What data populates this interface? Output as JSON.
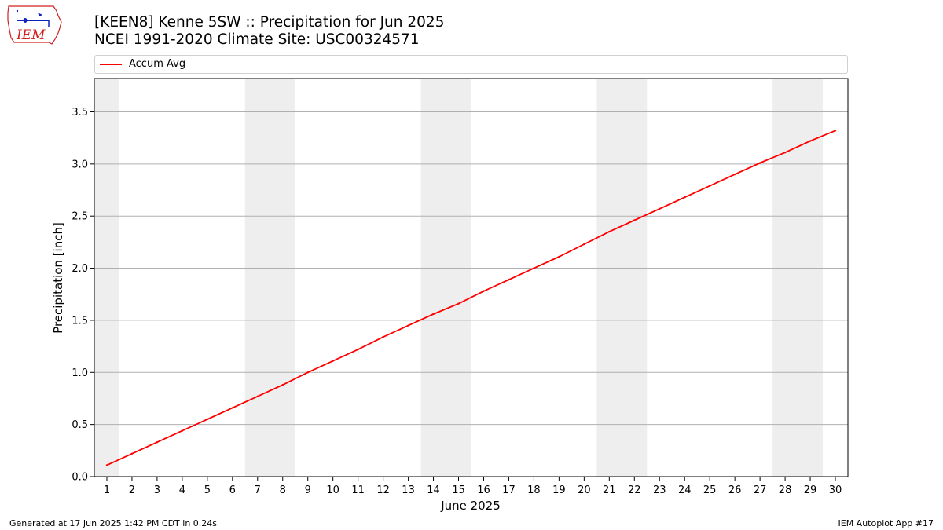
{
  "header": {
    "title_line1": "[KEEN8] Kenne 5SW :: Precipitation for Jun 2025",
    "title_line2": "NCEI 1991-2020 Climate Site: USC00324571"
  },
  "logo": {
    "text": "IEM",
    "icon": "iem-iowa-logo-icon"
  },
  "footer": {
    "left": "Generated at 17 Jun 2025 1:42 PM CDT in 0.24s",
    "right": "IEM Autoplot App #17"
  },
  "colors": {
    "accum_avg": "#ff0000",
    "weekend_band": "#eeeeee",
    "grid": "#b0b0b0"
  },
  "chart_data": {
    "type": "line",
    "xlabel": "June 2025",
    "ylabel": "Precipitation [inch]",
    "x": [
      1,
      2,
      3,
      4,
      5,
      6,
      7,
      8,
      9,
      10,
      11,
      12,
      13,
      14,
      15,
      16,
      17,
      18,
      19,
      20,
      21,
      22,
      23,
      24,
      25,
      26,
      27,
      28,
      29,
      30
    ],
    "xlim": [
      0.5,
      30.5
    ],
    "ylim": [
      0,
      3.82
    ],
    "yticks": [
      0.0,
      0.5,
      1.0,
      1.5,
      2.0,
      2.5,
      3.0,
      3.5
    ],
    "ytick_labels": [
      "0.0",
      "0.5",
      "1.0",
      "1.5",
      "2.0",
      "2.5",
      "3.0",
      "3.5"
    ],
    "grid": "y",
    "legend_placement": "top-left, above plot",
    "weekend_days": [
      1,
      7,
      8,
      14,
      15,
      21,
      22,
      28,
      29
    ],
    "series": [
      {
        "name": "Accum Avg",
        "color": "#ff0000",
        "values": [
          0.11,
          0.22,
          0.33,
          0.44,
          0.55,
          0.66,
          0.77,
          0.88,
          1.0,
          1.11,
          1.22,
          1.34,
          1.45,
          1.56,
          1.66,
          1.78,
          1.89,
          2.0,
          2.11,
          2.23,
          2.35,
          2.46,
          2.57,
          2.68,
          2.79,
          2.9,
          3.01,
          3.11,
          3.22,
          3.32
        ]
      }
    ]
  }
}
